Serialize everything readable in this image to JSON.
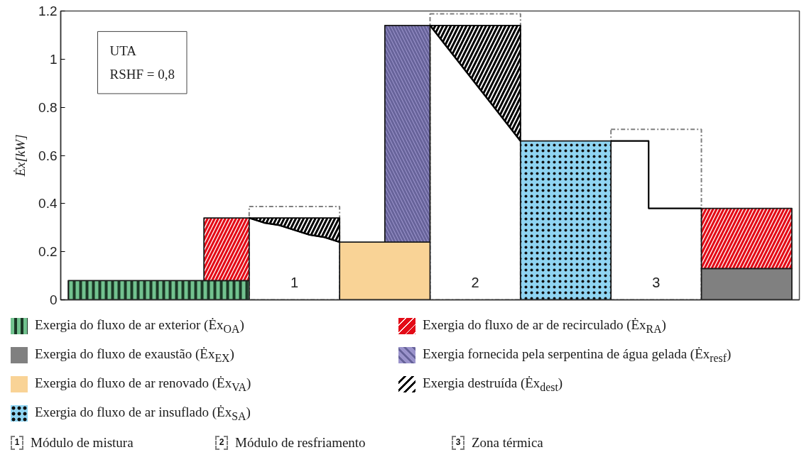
{
  "chart_data": {
    "type": "area",
    "stacked": true,
    "ylabel": "Ėx[kW]",
    "categories": [
      null,
      null,
      null,
      null,
      null,
      null,
      null,
      null,
      null,
      null,
      null,
      null,
      null,
      null,
      null,
      null,
      null,
      null,
      null,
      null,
      null,
      null,
      null,
      null,
      null,
      null,
      null,
      null,
      null,
      null,
      null,
      null,
      null,
      null,
      null,
      null,
      null,
      null,
      null,
      null,
      null,
      null,
      null,
      null,
      null,
      null,
      null,
      null,
      null
    ],
    "ylim": [
      0,
      1.2
    ],
    "yticks": [
      0,
      0.2,
      0.4,
      0.6,
      0.8,
      1,
      1.2
    ],
    "tick_labels": "y",
    "grid": false,
    "legend": "bottom",
    "series": [
      {
        "name": "Exergia do fluxo de ar exterior (Ėx$_{OA}$)",
        "color": "#72c28f",
        "values": [
          0.08,
          0.08,
          0.08,
          0.08,
          0.08,
          0.08,
          0.08,
          0.08,
          0.08,
          0.08,
          0.08,
          0.08,
          0.08,
          null,
          null,
          null,
          null,
          null,
          null,
          null,
          null,
          null,
          null,
          null,
          null,
          null,
          null,
          null,
          null,
          null,
          null,
          null,
          null,
          null,
          null,
          null,
          null,
          null,
          null,
          null,
          null,
          null,
          null,
          null,
          null,
          null,
          null,
          null,
          null
        ]
      },
      {
        "name": "Exergia do fluxo de exaustão (Ėx$_{EX}$)",
        "color": "#808080",
        "values": [
          null,
          null,
          null,
          null,
          null,
          null,
          null,
          null,
          null,
          null,
          null,
          null,
          null,
          null,
          null,
          null,
          null,
          null,
          null,
          null,
          null,
          null,
          null,
          null,
          null,
          null,
          null,
          null,
          null,
          null,
          null,
          null,
          null,
          null,
          null,
          null,
          null,
          null,
          null,
          null,
          null,
          null,
          0.13,
          0.13,
          0.13,
          0.13,
          0.13,
          0.13,
          0.13
        ]
      },
      {
        "name": "Exergia do fluxo de ar renovado (Ėx$_{VA}$)",
        "color": "#f9d396",
        "values": [
          null,
          null,
          null,
          null,
          null,
          null,
          null,
          null,
          null,
          null,
          null,
          null,
          null,
          null,
          null,
          null,
          null,
          null,
          0.24,
          0.24,
          0.24,
          0.24,
          0.24,
          0.24,
          0.24,
          null,
          null,
          null,
          null,
          null,
          null,
          null,
          null,
          null,
          null,
          null,
          null,
          null,
          null,
          null,
          null,
          null,
          null,
          null,
          null,
          null,
          null,
          null,
          null
        ]
      },
      {
        "name": "Exergia do fluxo de ar insuflado (Ėx$_{SA}$)",
        "color": "#8fd4f2",
        "values": [
          null,
          null,
          null,
          null,
          null,
          null,
          null,
          null,
          null,
          null,
          null,
          null,
          null,
          null,
          null,
          null,
          null,
          null,
          null,
          null,
          null,
          null,
          null,
          null,
          null,
          null,
          null,
          null,
          null,
          null,
          0.66,
          0.66,
          0.66,
          0.66,
          0.66,
          0.66,
          0.66,
          null,
          null,
          null,
          null,
          null,
          null,
          null,
          null,
          null,
          null,
          null,
          null
        ]
      },
      {
        "name": "Exergia do fluxo de ar de recirculado (Ėx$_{RA}$)",
        "color": "#e30b17",
        "values": [
          null,
          null,
          null,
          null,
          null,
          null,
          null,
          null,
          null,
          0.26,
          0.26,
          0.26,
          0.26,
          null,
          null,
          null,
          null,
          null,
          null,
          null,
          null,
          null,
          null,
          null,
          null,
          null,
          null,
          null,
          null,
          null,
          null,
          null,
          null,
          null,
          null,
          null,
          null,
          null,
          null,
          null,
          null,
          null,
          0.25,
          0.25,
          0.25,
          0.25,
          0.25,
          0.25,
          0.25
        ]
      },
      {
        "name": "Exergia fornecida pela serpentina de água gelada (Ėx$_{resf}$)",
        "color": "#9a93cb",
        "values": [
          null,
          null,
          null,
          null,
          null,
          null,
          null,
          null,
          null,
          null,
          null,
          null,
          null,
          null,
          null,
          null,
          null,
          null,
          null,
          null,
          null,
          0.9,
          0.9,
          0.9,
          0.9,
          null,
          null,
          null,
          null,
          null,
          null,
          null,
          null,
          null,
          null,
          null,
          null,
          null,
          null,
          null,
          null,
          null,
          null,
          null,
          null,
          null,
          null,
          null,
          null
        ]
      },
      {
        "name": "Exergia destruída (Ėx$_{dest}$)",
        "type": "line",
        "color": "#000000",
        "values": [
          null,
          null,
          null,
          null,
          null,
          null,
          null,
          null,
          null,
          null,
          null,
          null,
          0.34,
          0.32,
          0.31,
          0.29,
          0.27,
          0.26,
          0.24,
          null,
          null,
          null,
          null,
          null,
          1.14,
          1.06,
          0.98,
          0.9,
          0.82,
          0.74,
          0.66,
          null,
          null,
          null,
          null,
          null,
          null,
          null,
          null,
          null,
          null,
          null,
          null,
          null,
          null,
          null,
          null,
          null,
          null
        ],
        "lower": [
          null,
          null,
          null,
          null,
          null,
          null,
          null,
          null,
          null,
          null,
          null,
          null,
          0.34,
          0.32,
          0.31,
          0.29,
          0.27,
          0.26,
          0.24,
          null,
          null,
          null,
          null,
          null,
          1.14,
          1.06,
          0.98,
          0.9,
          0.82,
          0.74,
          0.66,
          null,
          null,
          null,
          null,
          null,
          null,
          null,
          null,
          null,
          null,
          null,
          null,
          null,
          null,
          null,
          null,
          null,
          null
        ],
        "upper": [
          null,
          null,
          null,
          null,
          null,
          null,
          null,
          null,
          null,
          null,
          null,
          null,
          0.34,
          0.34,
          0.34,
          0.34,
          0.34,
          0.34,
          0.34,
          null,
          null,
          null,
          null,
          null,
          1.14,
          1.14,
          1.14,
          1.14,
          1.14,
          1.14,
          1.14,
          null,
          null,
          null,
          null,
          null,
          null,
          null,
          null,
          null,
          null,
          null,
          null,
          null,
          null,
          null,
          null,
          null,
          null
        ]
      },
      {
        "type": "step",
        "color": "#000000",
        "values": [
          null,
          null,
          null,
          null,
          null,
          null,
          null,
          null,
          null,
          null,
          null,
          null,
          null,
          null,
          null,
          null,
          null,
          null,
          null,
          null,
          null,
          null,
          null,
          null,
          null,
          null,
          null,
          null,
          null,
          null,
          null,
          null,
          null,
          null,
          null,
          null,
          0.66,
          0.66,
          0.66,
          0.38,
          0.38,
          0.38,
          0.38,
          null,
          null,
          null,
          null,
          null,
          null
        ]
      }
    ],
    "annotations": [
      "UTA",
      "RSHF = 0,8",
      "1",
      "2",
      "3",
      "Módulo de mistura",
      "Módulo de resfriamento",
      "Zona térmica"
    ]
  }
}
